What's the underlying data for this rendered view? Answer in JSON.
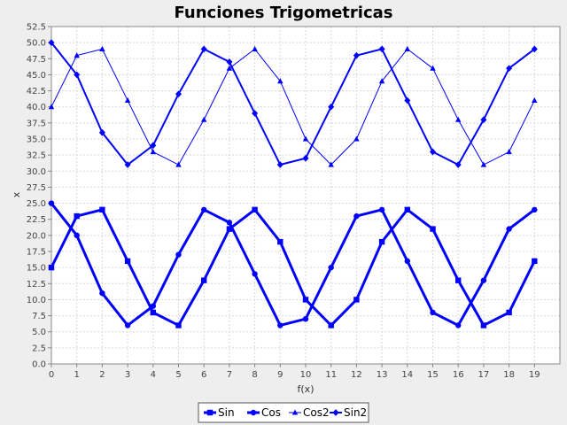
{
  "chart_data": {
    "type": "line",
    "title": "Funciones Trigometricas",
    "xlabel": "f(x)",
    "ylabel": "x",
    "xlim": [
      0,
      20
    ],
    "ylim": [
      0,
      52.5
    ],
    "x": [
      0,
      1,
      2,
      3,
      4,
      5,
      6,
      7,
      8,
      9,
      10,
      11,
      12,
      13,
      14,
      15,
      16,
      17,
      18,
      19
    ],
    "x_ticks": [
      "0",
      "1",
      "2",
      "3",
      "4",
      "5",
      "6",
      "7",
      "8",
      "9",
      "10",
      "11",
      "12",
      "13",
      "14",
      "15",
      "16",
      "17",
      "18",
      "19"
    ],
    "y_ticks": [
      "0.0",
      "2.5",
      "5.0",
      "7.5",
      "10.0",
      "12.5",
      "15.0",
      "17.5",
      "20.0",
      "22.5",
      "25.0",
      "27.5",
      "30.0",
      "32.5",
      "35.0",
      "37.5",
      "40.0",
      "42.5",
      "45.0",
      "47.5",
      "50.0",
      "52.5"
    ],
    "grid": true,
    "legend_position": "bottom",
    "series": [
      {
        "name": "Sin",
        "marker": "square",
        "width": 3,
        "color": "#0000ff",
        "values": [
          15,
          23,
          24,
          16,
          8,
          6,
          13,
          21,
          24,
          19,
          10,
          6,
          10,
          19,
          24,
          21,
          13,
          6,
          8,
          16
        ]
      },
      {
        "name": "Cos",
        "marker": "circle",
        "width": 3,
        "color": "#0000ff",
        "values": [
          25,
          20,
          11,
          6,
          9,
          17,
          24,
          22,
          14,
          6,
          7,
          15,
          23,
          24,
          16,
          8,
          6,
          13,
          21,
          24
        ]
      },
      {
        "name": "Cos2",
        "marker": "triangle",
        "width": 1,
        "color": "#0000ff",
        "values": [
          40,
          48,
          49,
          41,
          33,
          31,
          38,
          46,
          49,
          44,
          35,
          31,
          35,
          44,
          49,
          46,
          38,
          31,
          33,
          41
        ]
      },
      {
        "name": "Sin2",
        "marker": "diamond",
        "width": 2,
        "color": "#0000ff",
        "values": [
          50,
          45,
          36,
          31,
          34,
          42,
          49,
          47,
          39,
          31,
          32,
          40,
          48,
          49,
          41,
          33,
          31,
          38,
          46,
          49
        ]
      }
    ]
  }
}
